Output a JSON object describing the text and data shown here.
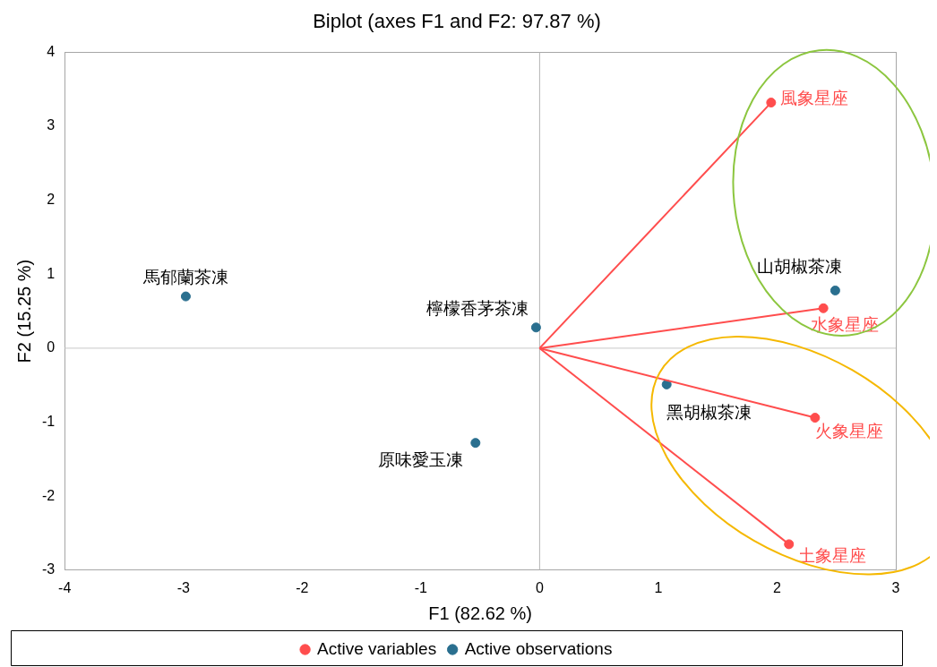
{
  "chart_data": {
    "type": "scatter",
    "title": "Biplot (axes F1 and F2: 97.87 %)",
    "xlabel": "F1 (82.62 %)",
    "ylabel": "F2 (15.25 %)",
    "xlim": [
      -4,
      3
    ],
    "xticks": [
      -4,
      -3,
      -2,
      -1,
      0,
      1,
      2,
      3
    ],
    "ylim": [
      -3,
      4
    ],
    "yticks": [
      -3,
      -2,
      -1,
      0,
      1,
      2,
      3,
      4
    ],
    "grid": false,
    "legend": "bottom",
    "marker": "circle",
    "ref_lines": [
      {
        "axis": "x",
        "value": 0,
        "color": "#b4b4b4"
      },
      {
        "axis": "y",
        "value": 0,
        "color": "#c8c8c8"
      }
    ],
    "series": [
      {
        "type": "line",
        "marker": "none",
        "color": "#ff4d4d",
        "x": [
          0,
          1.95
        ],
        "values": [
          0,
          3.32
        ]
      },
      {
        "type": "line",
        "marker": "none",
        "color": "#ff4d4d",
        "x": [
          0,
          2.39
        ],
        "values": [
          0,
          0.54
        ]
      },
      {
        "type": "line",
        "marker": "none",
        "color": "#ff4d4d",
        "x": [
          0,
          2.32
        ],
        "values": [
          0,
          -0.94
        ]
      },
      {
        "type": "line",
        "marker": "none",
        "color": "#ff4d4d",
        "x": [
          0,
          2.1
        ],
        "values": [
          0,
          -2.65
        ]
      },
      {
        "name": "Active variables",
        "color": "#ff4d4d",
        "x": [
          1.95,
          2.39,
          2.32,
          2.1
        ],
        "values": [
          3.32,
          0.54,
          -0.94,
          -2.65
        ]
      },
      {
        "name": "Active observations",
        "color": "#2a6f8f",
        "x": [
          -2.98,
          -0.03,
          -0.54,
          2.49,
          1.07
        ],
        "values": [
          0.7,
          0.28,
          -1.28,
          0.78,
          -0.49
        ]
      }
    ],
    "annotations": [
      {
        "text": "風象星座",
        "x": 1.95,
        "y": 3.32
      },
      {
        "text": "水象星座",
        "x": 2.39,
        "y": 0.54
      },
      {
        "text": "火象星座",
        "x": 2.32,
        "y": -0.94
      },
      {
        "text": "土象星座",
        "x": 2.1,
        "y": -2.65
      },
      {
        "text": "馬郁蘭茶凍",
        "x": -2.98,
        "y": 0.7
      },
      {
        "text": "檸檬香茅茶凍",
        "x": -0.03,
        "y": 0.28
      },
      {
        "text": "原味愛玉凍",
        "x": -0.54,
        "y": -1.28
      },
      {
        "text": "山胡椒茶凍",
        "x": 2.49,
        "y": 0.78
      },
      {
        "text": "黑胡椒茶凍",
        "x": 1.07,
        "y": -0.49
      }
    ]
  }
}
